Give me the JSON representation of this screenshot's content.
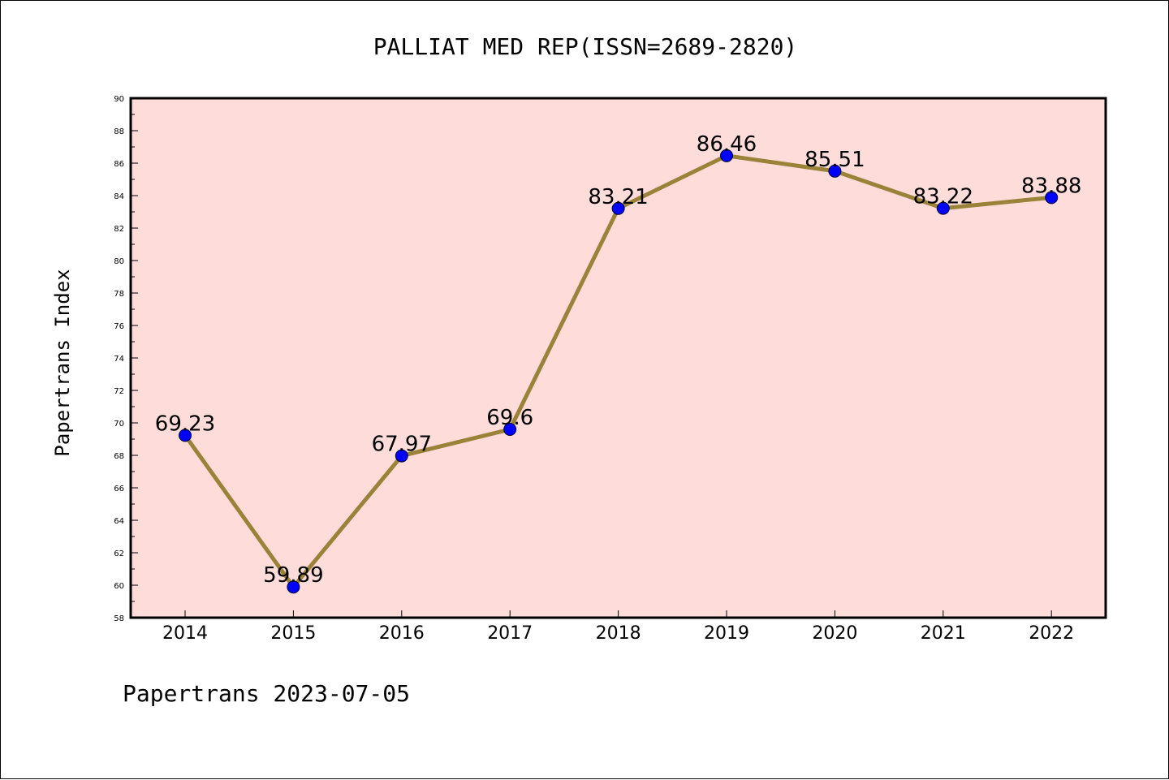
{
  "chart_data": {
    "type": "line",
    "title": "PALLIAT MED REP(ISSN=2689-2820)",
    "ylabel": "Papertrans Index",
    "xlabel": "",
    "categories": [
      "2014",
      "2015",
      "2016",
      "2017",
      "2018",
      "2019",
      "2020",
      "2021",
      "2022"
    ],
    "values": [
      69.23,
      59.89,
      67.97,
      69.6,
      83.21,
      86.46,
      85.51,
      83.22,
      83.88
    ],
    "data_labels": [
      "69.23",
      "59.89",
      "67.97",
      "69.6",
      "83.21",
      "86.46",
      "85.51",
      "83.22",
      "83.88"
    ],
    "ylim": [
      58,
      90
    ],
    "yticks": [
      "58",
      "60",
      "62",
      "64",
      "66",
      "68",
      "70",
      "72",
      "74",
      "76",
      "78",
      "80",
      "82",
      "84",
      "86",
      "88",
      "90"
    ],
    "grid": false,
    "legend": "none",
    "colors": {
      "plot_background": "#fddcda",
      "line": "#9b8239",
      "marker": "#0000ff"
    }
  },
  "footer": "Papertrans 2023-07-05"
}
